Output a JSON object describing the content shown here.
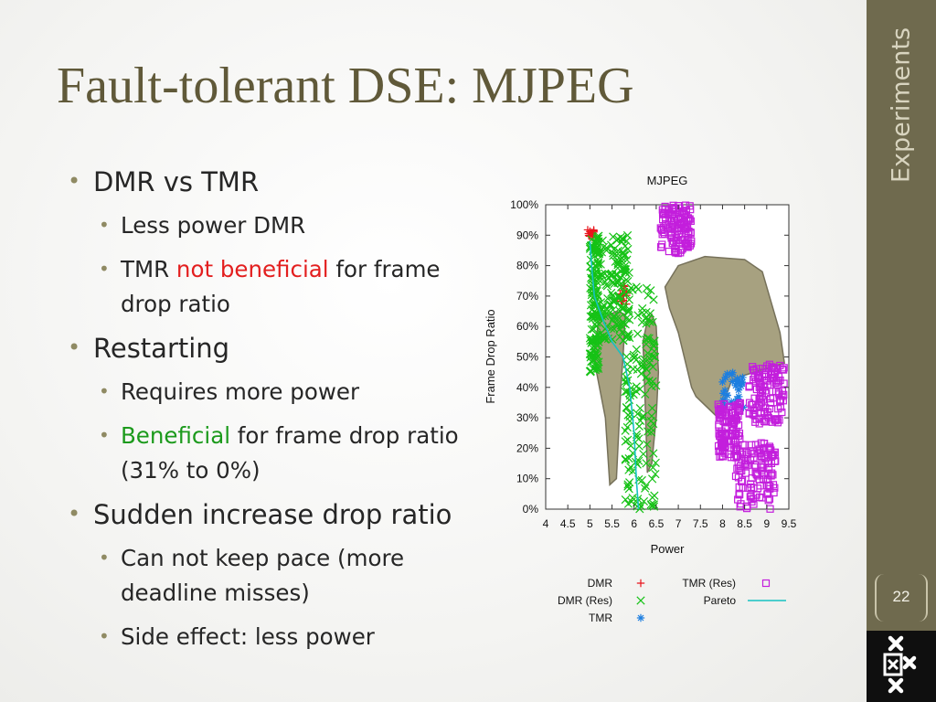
{
  "slide": {
    "title": "Fault-tolerant DSE: MJPEG",
    "section": "Experiments",
    "page_number": "22"
  },
  "bullets": [
    {
      "text": "DMR vs TMR",
      "sub": [
        {
          "text": "Less power DMR"
        },
        {
          "parts": [
            "TMR ",
            "not beneficial",
            " for frame drop ratio"
          ]
        }
      ]
    },
    {
      "text": "Restarting",
      "sub": [
        {
          "text": "Requires more power"
        },
        {
          "parts": [
            "",
            "Beneficial",
            " for frame drop ratio (31% to 0%)"
          ]
        }
      ]
    },
    {
      "text": "Sudden increase drop ratio",
      "sub": [
        {
          "text": "Can not keep pace (more deadline misses)"
        },
        {
          "text": "Side effect: less power"
        }
      ]
    }
  ],
  "colors": {
    "title": "#605939",
    "sidebar": "#6f6a4e",
    "bullet_marker": "#8f8a63",
    "emphasis_red": "#e31f1f",
    "emphasis_green": "#1c9a1c",
    "dmr": "#e8141c",
    "dmr_res": "#16c216",
    "tmr": "#1c7ee0",
    "tmr_res": "#c31fdc",
    "pareto": "#16c2c2",
    "annotation_shape": "#a39c7a"
  },
  "chart_data": {
    "type": "scatter",
    "title": "MJPEG",
    "xlabel": "Power",
    "ylabel": "Frame Drop Ratio",
    "xlim": [
      4,
      9.5
    ],
    "ylim": [
      0,
      100
    ],
    "x_ticks": [
      "4",
      "4.5",
      "5",
      "5.5",
      "6",
      "6.5",
      "7",
      "7.5",
      "8",
      "8.5",
      "9",
      "9.5"
    ],
    "y_ticks": [
      "0%",
      "10%",
      "20%",
      "30%",
      "40%",
      "50%",
      "60%",
      "70%",
      "80%",
      "90%",
      "100%"
    ],
    "legend_position": "bottom",
    "series": [
      {
        "name": "DMR",
        "marker": "plus",
        "clusters": [
          {
            "x": [
              4.95,
              5.1
            ],
            "y": [
              89,
              92
            ]
          },
          {
            "x": [
              5.6,
              5.85
            ],
            "y": [
              67,
              74
            ]
          }
        ]
      },
      {
        "name": "DMR (Res)",
        "marker": "x",
        "clusters": [
          {
            "x": [
              5.0,
              5.2
            ],
            "y": [
              45,
              90
            ]
          },
          {
            "x": [
              5.2,
              5.9
            ],
            "y": [
              55,
              90
            ]
          },
          {
            "x": [
              5.8,
              6.5
            ],
            "y": [
              0,
              75
            ]
          }
        ]
      },
      {
        "name": "TMR",
        "marker": "star",
        "clusters": [
          {
            "x": [
              8.0,
              8.5
            ],
            "y": [
              33,
              45
            ]
          }
        ]
      },
      {
        "name": "TMR (Res)",
        "marker": "square",
        "clusters": [
          {
            "x": [
              6.6,
              7.3
            ],
            "y": [
              84,
              100
            ]
          },
          {
            "x": [
              7.9,
              8.4
            ],
            "y": [
              17,
              35
            ]
          },
          {
            "x": [
              8.3,
              9.2
            ],
            "y": [
              0,
              22
            ]
          },
          {
            "x": [
              8.6,
              9.4
            ],
            "y": [
              28,
              48
            ]
          }
        ]
      },
      {
        "name": "Pareto",
        "marker": "line",
        "points": [
          [
            5.0,
            88
          ],
          [
            5.05,
            78
          ],
          [
            5.1,
            70
          ],
          [
            5.3,
            62
          ],
          [
            5.5,
            55
          ],
          [
            5.75,
            50
          ],
          [
            5.9,
            40
          ],
          [
            6.0,
            25
          ],
          [
            6.05,
            10
          ],
          [
            6.1,
            0
          ]
        ]
      }
    ],
    "annotation_shapes": [
      {
        "points": [
          [
            5.2,
            62
          ],
          [
            5.6,
            65
          ],
          [
            5.8,
            64
          ],
          [
            5.75,
            50
          ],
          [
            5.7,
            40
          ],
          [
            5.65,
            25
          ],
          [
            5.6,
            10
          ],
          [
            5.45,
            8
          ],
          [
            5.35,
            30
          ],
          [
            5.15,
            45
          ],
          [
            5.1,
            52
          ]
        ]
      },
      {
        "points": [
          [
            6.3,
            62
          ],
          [
            6.4,
            64
          ],
          [
            6.5,
            60
          ],
          [
            6.55,
            45
          ],
          [
            6.5,
            30
          ],
          [
            6.4,
            15
          ],
          [
            6.3,
            12
          ],
          [
            6.25,
            35
          ],
          [
            6.2,
            55
          ]
        ]
      },
      {
        "points": [
          [
            6.7,
            73
          ],
          [
            7.0,
            80
          ],
          [
            7.6,
            83
          ],
          [
            8.5,
            82
          ],
          [
            8.9,
            78
          ],
          [
            9.1,
            68
          ],
          [
            9.3,
            58
          ],
          [
            9.4,
            48
          ],
          [
            8.5,
            44
          ],
          [
            8.2,
            42
          ],
          [
            7.9,
            30
          ],
          [
            7.4,
            37
          ],
          [
            7.3,
            40
          ],
          [
            7.0,
            58
          ],
          [
            6.8,
            66
          ]
        ]
      }
    ]
  }
}
